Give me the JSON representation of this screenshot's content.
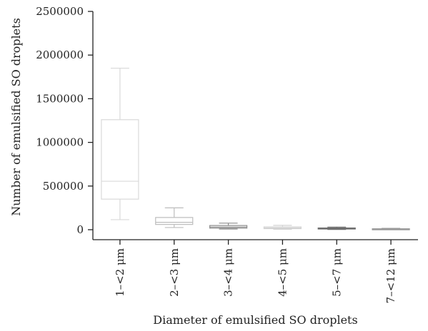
{
  "chart_data": {
    "type": "box",
    "title": "",
    "xlabel": "Diameter of emulsified SO droplets",
    "ylabel": "Number of emulsified SO droplets",
    "ylim": [
      0,
      2500000
    ],
    "yticks": [
      0,
      500000,
      1000000,
      1500000,
      2000000,
      2500000
    ],
    "ytick_labels": [
      "0",
      "500000",
      "1000000",
      "1500000",
      "2000000",
      "2500000"
    ],
    "grid": false,
    "legend": "none",
    "categories": [
      "1–<2 μm",
      "2–<3 μm",
      "3–<4 μm",
      "4–<5 μm",
      "5–<7 μm",
      "7–<12 μm"
    ],
    "boxes": [
      {
        "category": "1–<2 μm",
        "min": 115000,
        "q1": 350000,
        "median": 555000,
        "q3": 1260000,
        "max": 1850000,
        "color": "#d9d9d9"
      },
      {
        "category": "2–<3 μm",
        "min": 25000,
        "q1": 60000,
        "median": 85000,
        "q3": 140000,
        "max": 250000,
        "color": "#bdbdbd"
      },
      {
        "category": "3–<4 μm",
        "min": 8000,
        "q1": 18000,
        "median": 30000,
        "q3": 48000,
        "max": 75000,
        "color": "#8c8c8c"
      },
      {
        "category": "4–<5 μm",
        "min": 5000,
        "q1": 12000,
        "median": 20000,
        "q3": 32000,
        "max": 50000,
        "color": "#d3d3d3"
      },
      {
        "category": "5–<7 μm",
        "min": 3000,
        "q1": 8000,
        "median": 13000,
        "q3": 20000,
        "max": 30000,
        "color": "#6e6e6e"
      },
      {
        "category": "7–<12 μm",
        "min": 1000,
        "q1": 4000,
        "median": 7000,
        "q3": 11000,
        "max": 16000,
        "color": "#9a9a9a"
      }
    ]
  }
}
